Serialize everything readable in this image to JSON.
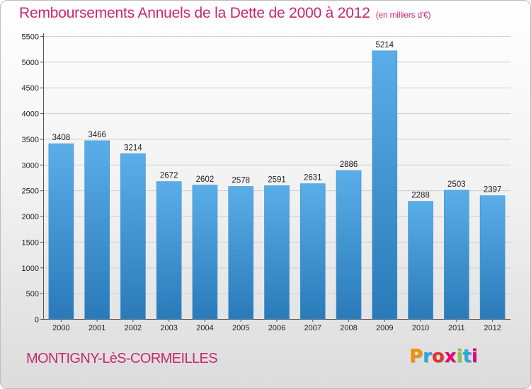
{
  "header": {
    "title": "Remboursements Annuels de la Dette de 2000 à 2012",
    "subtitle": "(en milliers d'€)"
  },
  "footer": {
    "commune": "MONTIGNY-LèS-CORMEILLES",
    "logo_text": "Proxiti",
    "logo_colors": [
      "#f39200",
      "#2ba7df",
      "#e2332f",
      "#e6007e",
      "#8cc63f",
      "#2ba7df",
      "#e6007e"
    ]
  },
  "chart_data": {
    "type": "bar",
    "title": "Remboursements Annuels de la Dette de 2000 à 2012",
    "subtitle": "(en milliers d'€)",
    "categories": [
      "2000",
      "2001",
      "2002",
      "2003",
      "2004",
      "2005",
      "2006",
      "2007",
      "2008",
      "2009",
      "2010",
      "2011",
      "2012"
    ],
    "values": [
      3408,
      3466,
      3214,
      2672,
      2602,
      2578,
      2591,
      2631,
      2886,
      5214,
      2288,
      2503,
      2397
    ],
    "ylim": [
      0,
      5500
    ],
    "yticks": [
      0,
      500,
      1000,
      1500,
      2000,
      2500,
      3000,
      3500,
      4000,
      4500,
      5000,
      5500
    ],
    "grid": true,
    "bar_color_top": "#5aaee8",
    "bar_color_bottom": "#2a7ab9"
  }
}
